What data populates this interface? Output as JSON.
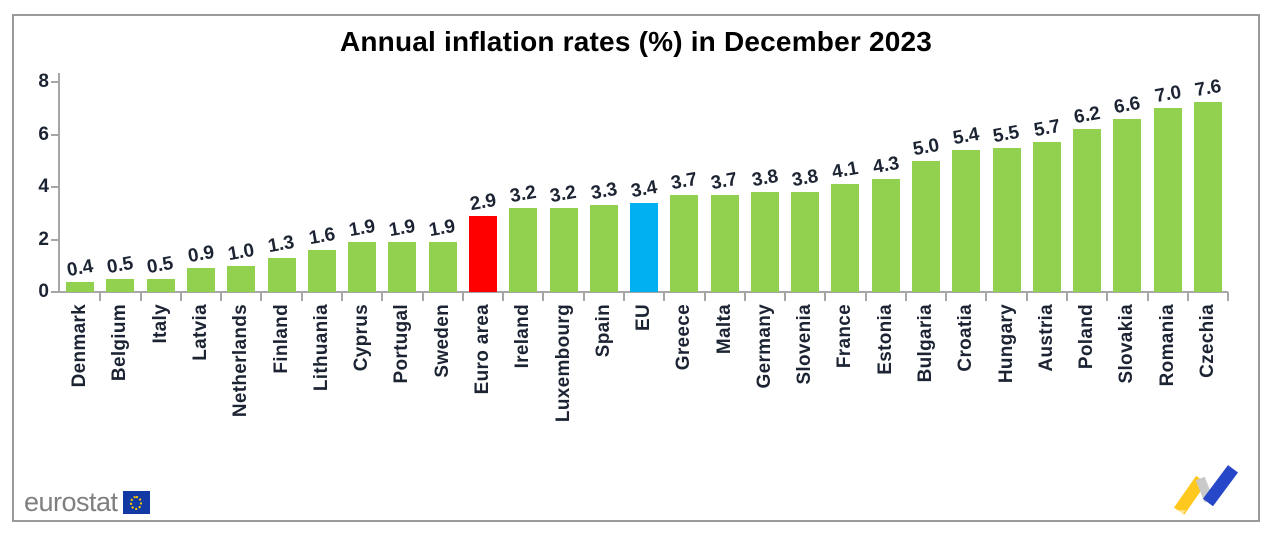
{
  "title": "Annual inflation rates (%) in December 2023",
  "chart_data": {
    "type": "bar",
    "categories": [
      "Denmark",
      "Belgium",
      "Italy",
      "Latvia",
      "Netherlands",
      "Finland",
      "Lithuania",
      "Cyprus",
      "Portugal",
      "Sweden",
      "Euro area",
      "Ireland",
      "Luxembourg",
      "Spain",
      "EU",
      "Greece",
      "Malta",
      "Germany",
      "Slovenia",
      "France",
      "Estonia",
      "Bulgaria",
      "Croatia",
      "Hungary",
      "Austria",
      "Poland",
      "Slovakia",
      "Romania",
      "Czechia"
    ],
    "values": [
      0.4,
      0.5,
      0.5,
      0.9,
      1.0,
      1.3,
      1.6,
      1.9,
      1.9,
      1.9,
      2.9,
      3.2,
      3.2,
      3.3,
      3.4,
      3.7,
      3.7,
      3.8,
      3.8,
      4.1,
      4.3,
      5.0,
      5.4,
      5.5,
      5.7,
      6.2,
      6.6,
      7.0,
      7.6
    ],
    "title": "Annual inflation rates (%) in December 2023",
    "xlabel": "",
    "ylabel": "",
    "ylim": [
      0,
      8
    ],
    "yticks": [
      0,
      2,
      4,
      6,
      8
    ],
    "grid": false,
    "legend": "none",
    "value_labels": "one decimal, above each bar, slightly rotated",
    "bar_colors": {
      "default": "#92D050",
      "Euro area": "#FF0000",
      "EU": "#00B0F0"
    }
  },
  "footer": {
    "brand": "eurostat",
    "eu_flag_icon": "eu-flag-icon",
    "trend_icon": "trend-line-icon"
  },
  "colors": {
    "bar_green": "#92D050",
    "bar_red": "#FF0000",
    "bar_blue": "#00B0F0",
    "axis_gray": "#A6A6A6",
    "label_text": "#1C2433",
    "title_text": "#000000",
    "brand_gray": "#7F7F7F",
    "eu_flag_blue": "#1239A4",
    "trend_yellow": "#FFC81E",
    "trend_blue": "#2547C8",
    "trend_gray": "#C9C9C9",
    "frame_border": "#9A9A9A"
  }
}
